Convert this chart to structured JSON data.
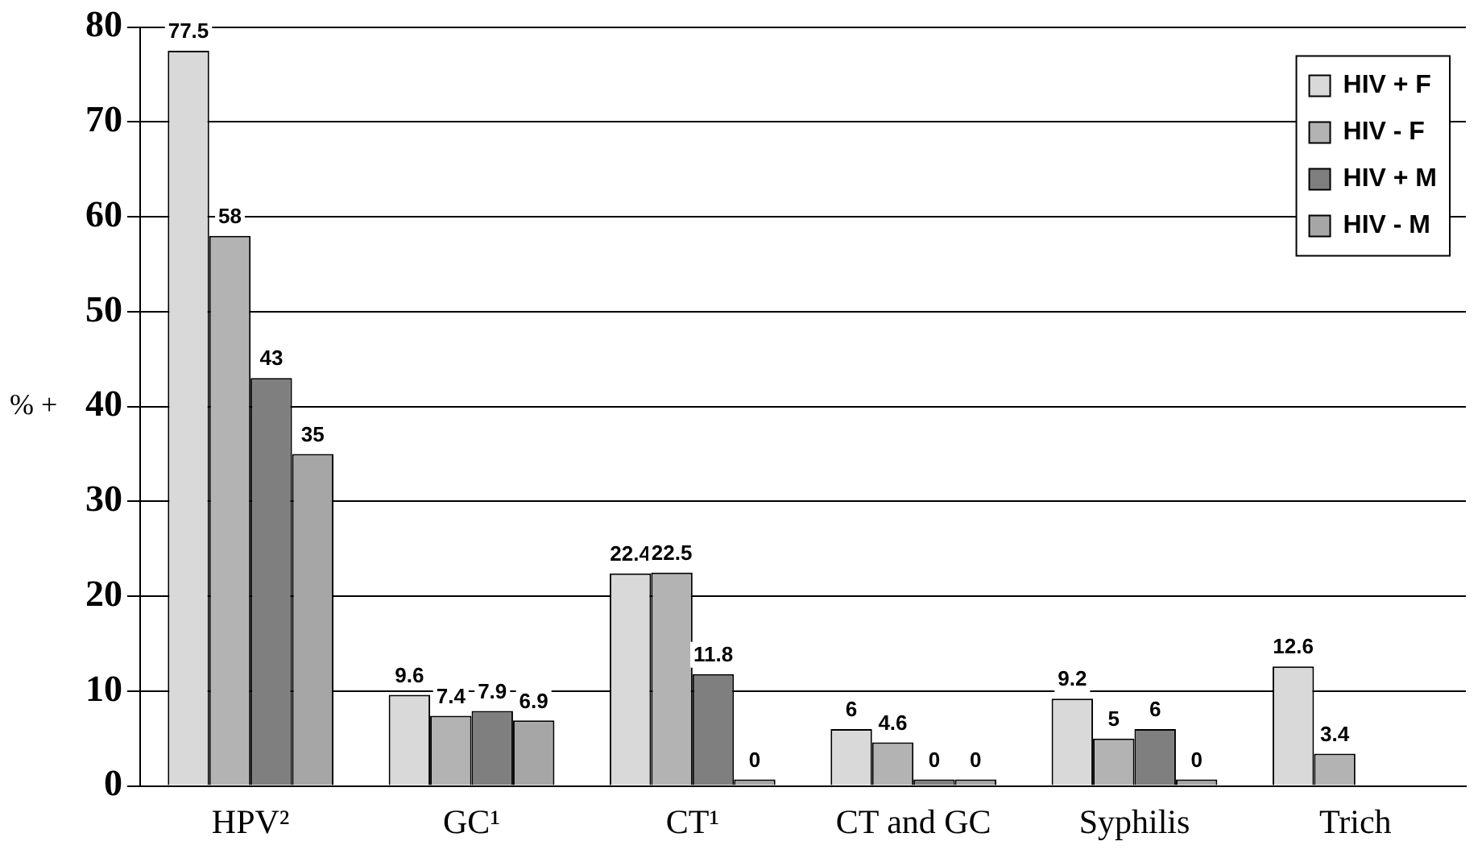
{
  "chart_data": {
    "type": "bar",
    "categories": [
      "HPV²",
      "GC¹",
      "CT¹",
      "CT and GC",
      "Syphilis",
      "Trich"
    ],
    "ylabel": "% +",
    "ylim": [
      0,
      80
    ],
    "yticks": [
      0,
      10,
      20,
      30,
      40,
      50,
      60,
      70,
      80
    ],
    "grid": "y",
    "legend": "top right",
    "data_labels": true,
    "series": [
      {
        "name": "HIV + F",
        "color": "#d9d9d9",
        "values": [
          77.5,
          9.6,
          22.4,
          6,
          9.2,
          12.6
        ]
      },
      {
        "name": "HIV - F",
        "color": "#b3b3b3",
        "values": [
          58,
          7.4,
          22.5,
          4.6,
          5,
          3.4
        ]
      },
      {
        "name": "HIV + M",
        "color": "#7f7f7f",
        "values": [
          43,
          7.9,
          11.8,
          0,
          6,
          null
        ]
      },
      {
        "name": "HIV - M",
        "color": "#a6a6a6",
        "values": [
          35,
          6.9,
          0,
          0,
          0,
          null
        ]
      }
    ]
  }
}
